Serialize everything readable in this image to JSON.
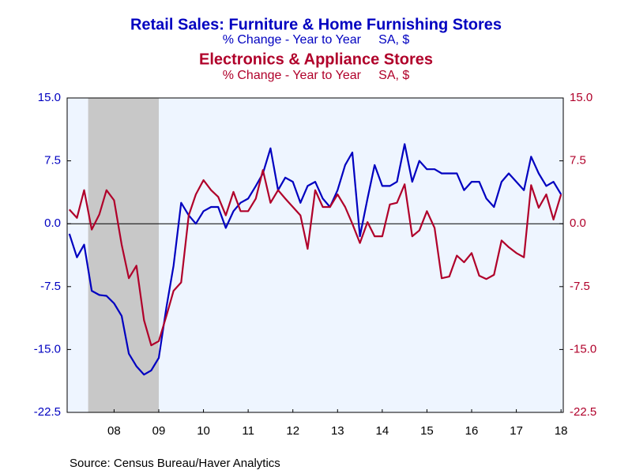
{
  "chart_data": {
    "type": "line",
    "source": "Source:  Census Bureau/Haver Analytics",
    "x": [
      2007.5,
      2007.67,
      2007.83,
      2008,
      2008.17,
      2008.33,
      2008.5,
      2008.67,
      2008.83,
      2009,
      2009.17,
      2009.33,
      2009.5,
      2009.67,
      2009.83,
      2010,
      2010.17,
      2010.33,
      2010.5,
      2010.67,
      2010.83,
      2011,
      2011.17,
      2011.33,
      2011.5,
      2011.67,
      2011.83,
      2012,
      2012.17,
      2012.33,
      2012.5,
      2012.67,
      2012.83,
      2013,
      2013.17,
      2013.33,
      2013.5,
      2013.67,
      2013.83,
      2014,
      2014.17,
      2014.33,
      2014.5,
      2014.67,
      2014.83,
      2015,
      2015.17,
      2015.33,
      2015.5,
      2015.67,
      2015.83,
      2016,
      2016.17,
      2016.33,
      2016.5,
      2016.67,
      2016.83,
      2017,
      2017.17,
      2017.33,
      2017.5,
      2017.67,
      2017.83,
      2018,
      2018.17,
      2018.33,
      2018.5
    ],
    "xlim": [
      2007.45,
      2018.55
    ],
    "xticks": [
      {
        "value": 2008.5,
        "label": "08"
      },
      {
        "value": 2009.5,
        "label": "09"
      },
      {
        "value": 2010.5,
        "label": "10"
      },
      {
        "value": 2011.5,
        "label": "11"
      },
      {
        "value": 2012.5,
        "label": "12"
      },
      {
        "value": 2013.5,
        "label": "13"
      },
      {
        "value": 2014.5,
        "label": "14"
      },
      {
        "value": 2015.5,
        "label": "15"
      },
      {
        "value": 2016.5,
        "label": "16"
      },
      {
        "value": 2017.5,
        "label": "17"
      },
      {
        "value": 2018.5,
        "label": "18"
      }
    ],
    "recession": [
      2007.92,
      2009.5
    ],
    "recession_color": "#c8c8c8",
    "ylim": [
      -22.5,
      15
    ],
    "yticks": [
      {
        "value": 15,
        "label": "15.0"
      },
      7.5,
      {
        "value": 0,
        "label": "0.0"
      },
      -7.5,
      {
        "value": -15,
        "label": "-15.0"
      },
      -22.5
    ],
    "y2lim": [
      -22.5,
      15
    ],
    "y2ticks": [
      {
        "value": 15,
        "label": "15.0"
      },
      7.5,
      {
        "value": 0,
        "label": "0.0"
      },
      -7.5,
      {
        "value": -15,
        "label": "-15.0"
      },
      -22.5
    ],
    "series": [
      {
        "name": "Retail Sales: Furniture & Home Furnishing Stores",
        "subtitle": "% Change - Year to Year     SA, $",
        "color": "#0000c0",
        "values": [
          -1.2,
          -4,
          -2.5,
          -8,
          -8.5,
          -8.6,
          -9.5,
          -11,
          -15.5,
          -17,
          -18,
          -17.5,
          -16,
          -10,
          -5,
          2.5,
          1,
          0,
          1.5,
          2,
          2,
          -0.5,
          1.5,
          2.5,
          3,
          4.5,
          6,
          9,
          4,
          5.5,
          5,
          2.5,
          4.5,
          5,
          3,
          2,
          4,
          7,
          8.5,
          -1.5,
          3,
          7,
          4.5,
          4.5,
          5,
          9.5,
          5,
          7.5,
          6.5,
          6.5,
          6,
          6,
          6,
          4,
          5,
          5,
          3,
          2,
          5,
          6,
          5,
          4,
          8,
          6,
          4.5,
          5,
          3.5
        ]
      },
      {
        "name": "Electronics & Appliance Stores",
        "subtitle": "% Change - Year to Year     SA, $",
        "color": "#b0002a",
        "axis": "y2",
        "values": [
          1.7,
          0.7,
          4,
          -0.7,
          1.1,
          4,
          2.8,
          -2.5,
          -6.5,
          -5,
          -11.5,
          -14.5,
          -14,
          -11,
          -8,
          -7,
          1,
          3.5,
          5.2,
          4,
          3.2,
          1,
          3.8,
          1.5,
          1.5,
          3,
          6.4,
          2.5,
          4,
          3,
          2,
          1,
          -3,
          4,
          2,
          2,
          3.5,
          2,
          0,
          -2.3,
          0.2,
          -1.5,
          -1.5,
          2.3,
          2.5,
          4.7,
          -1.5,
          -0.8,
          1.5,
          -0.5,
          -6.5,
          -6.3,
          -3.8,
          -4.6,
          -3.5,
          -6.2,
          -6.6,
          -6.1,
          -2,
          -2.8,
          -3.5,
          -4,
          4.6,
          1.9,
          3.5,
          0.5,
          3.5
        ]
      }
    ]
  }
}
